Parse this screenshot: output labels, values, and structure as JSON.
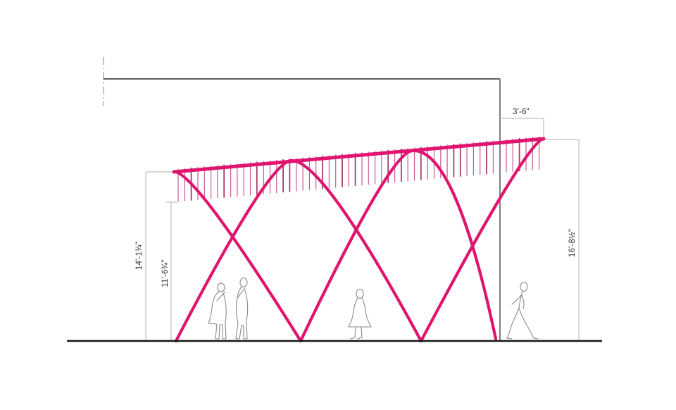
{
  "drawing": {
    "type": "architectural-elevation",
    "dimensions": {
      "canopy_overhang": "3'-6\"",
      "canopy_left_height": "14'-1¾\"",
      "hatch_bottom_left_height": "11'-6¾\"",
      "canopy_right_height": "16'-8½\""
    },
    "colors": {
      "structure_magenta": "#e0146e",
      "hatch_pink": "#c75a8f",
      "hatch_dark": "#a83a6e",
      "dim_line_gray": "#b3b3b3",
      "building_edge_gray": "#7d7d7d",
      "building_top_dark": "#2a2a2a",
      "ground_black": "#161616",
      "figure_gray": "#8a8a8a"
    }
  }
}
